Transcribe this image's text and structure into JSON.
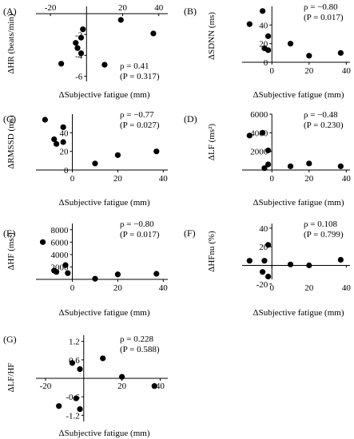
{
  "charts": [
    {
      "panel": "(A)",
      "type": "scatter",
      "xlabel": "ΔSubjective fatigue (mm)",
      "ylabel": "ΔHR (beats/min)",
      "xlim": [
        -28,
        45
      ],
      "ylim": [
        -6.5,
        0.7
      ],
      "x_ticks": [
        "-20",
        "20",
        "40"
      ],
      "x_tick_values": [
        -20,
        20,
        40
      ],
      "y_ticks": [
        "-2",
        "-4",
        "-6"
      ],
      "y_tick_values": [
        -2,
        -4,
        -6
      ],
      "x_tick_pos": "top",
      "stat_rho": "ρ = 0.41",
      "stat_p": "(P = 0.317)",
      "points": [
        {
          "x": -14,
          "y": -4.8
        },
        {
          "x": -6,
          "y": -2.8
        },
        {
          "x": -5,
          "y": -3.3
        },
        {
          "x": -3,
          "y": -3.8
        },
        {
          "x": -3,
          "y": -2.3
        },
        {
          "x": -2,
          "y": -1.5
        },
        {
          "x": 10,
          "y": -4.9
        },
        {
          "x": 19,
          "y": -0.6
        },
        {
          "x": 37,
          "y": -1.9
        }
      ]
    },
    {
      "panel": "(B)",
      "type": "scatter",
      "xlabel": "ΔSubjective fatigue (mm)",
      "ylabel": "ΔSDNN (ms)",
      "xlim": [
        -16,
        42
      ],
      "ylim": [
        0,
        60
      ],
      "x_ticks": [
        "0",
        "20",
        "40"
      ],
      "x_tick_values": [
        0,
        20,
        40
      ],
      "y_ticks": [
        "0",
        "20",
        "40"
      ],
      "y_tick_values": [
        0,
        20,
        40
      ],
      "x_tick_pos": "bottom",
      "stat_rho": "ρ = −0.80",
      "stat_p": "(P = 0.017)",
      "points": [
        {
          "x": -12,
          "y": 41
        },
        {
          "x": -5,
          "y": 55
        },
        {
          "x": -4,
          "y": 15
        },
        {
          "x": -2,
          "y": 13
        },
        {
          "x": -2,
          "y": 28
        },
        {
          "x": 10,
          "y": 20
        },
        {
          "x": 20,
          "y": 7
        },
        {
          "x": 37,
          "y": 10
        }
      ]
    },
    {
      "panel": "(C)",
      "type": "scatter",
      "xlabel": "ΔSubjective fatigue (mm)",
      "ylabel": "ΔRMSSD (ms)",
      "xlim": [
        -16,
        42
      ],
      "ylim": [
        0,
        60
      ],
      "x_ticks": [
        "0",
        "20",
        "40"
      ],
      "x_tick_values": [
        0,
        20,
        40
      ],
      "y_ticks": [
        "0",
        "20",
        "40"
      ],
      "y_tick_values": [
        0,
        20,
        40
      ],
      "x_tick_pos": "bottom",
      "stat_rho": "ρ = −0.77",
      "stat_p": "(P = 0.027)",
      "points": [
        {
          "x": -12,
          "y": 54
        },
        {
          "x": -8,
          "y": 33
        },
        {
          "x": -7,
          "y": 28
        },
        {
          "x": -4,
          "y": 46
        },
        {
          "x": -4,
          "y": 30
        },
        {
          "x": 10,
          "y": 7
        },
        {
          "x": 20,
          "y": 16
        },
        {
          "x": 37,
          "y": 20
        }
      ]
    },
    {
      "panel": "(D)",
      "type": "scatter",
      "xlabel": "ΔSubjective fatigue (mm)",
      "ylabel": "ΔLF (ms²)",
      "xlim": [
        -16,
        42
      ],
      "ylim": [
        0,
        6000
      ],
      "x_ticks": [
        "0",
        "20",
        "40"
      ],
      "x_tick_values": [
        0,
        20,
        40
      ],
      "y_ticks": [
        "6000",
        "4000",
        "2000"
      ],
      "y_tick_values": [
        6000,
        4000,
        2000
      ],
      "x_tick_pos": "bottom",
      "stat_rho": "ρ = −0.48",
      "stat_p": "(P = 0.230)",
      "points": [
        {
          "x": -12,
          "y": 3700
        },
        {
          "x": -5,
          "y": 4000
        },
        {
          "x": -4,
          "y": 200
        },
        {
          "x": -2,
          "y": 600
        },
        {
          "x": -2,
          "y": 2100
        },
        {
          "x": 10,
          "y": 400
        },
        {
          "x": 20,
          "y": 700
        },
        {
          "x": 37,
          "y": 400
        }
      ]
    },
    {
      "panel": "(E)",
      "type": "scatter",
      "xlabel": "ΔSubjective fatigue (mm)",
      "ylabel": "ΔHF (ms²)",
      "xlim": [
        -16,
        42
      ],
      "ylim": [
        0,
        9000
      ],
      "x_ticks": [
        "0",
        "20",
        "40"
      ],
      "x_tick_values": [
        0,
        20,
        40
      ],
      "y_ticks": [
        "8000",
        "6000",
        "4000",
        "2000"
      ],
      "y_tick_values": [
        8000,
        6000,
        4000,
        2000
      ],
      "x_tick_pos": "bottom",
      "stat_rho": "ρ = −0.80",
      "stat_p": "(P = 0.017)",
      "points": [
        {
          "x": -13,
          "y": 6000
        },
        {
          "x": -8,
          "y": 1400
        },
        {
          "x": -7,
          "y": 1200
        },
        {
          "x": -3,
          "y": 2300
        },
        {
          "x": -2,
          "y": 1000
        },
        {
          "x": 10,
          "y": 100
        },
        {
          "x": 20,
          "y": 800
        },
        {
          "x": 37,
          "y": 900
        }
      ]
    },
    {
      "panel": "(F)",
      "type": "scatter",
      "xlabel": "ΔSubjective fatigue (mm)",
      "ylabel": "ΔHFnu (%)",
      "xlim": [
        -16,
        42
      ],
      "ylim": [
        -15,
        45
      ],
      "x_ticks": [
        "0",
        "20",
        "40"
      ],
      "x_tick_values": [
        0,
        20,
        40
      ],
      "y_ticks": [
        "40",
        "20",
        "-20"
      ],
      "y_tick_values": [
        40,
        20,
        -20
      ],
      "x_tick_pos": "bottom",
      "stat_rho": "ρ = 0.108",
      "stat_p": "(P = 0.799)",
      "points": [
        {
          "x": -12,
          "y": 5
        },
        {
          "x": -5,
          "y": -7
        },
        {
          "x": -4,
          "y": 5
        },
        {
          "x": -2,
          "y": 22
        },
        {
          "x": -2,
          "y": -12
        },
        {
          "x": 10,
          "y": 1
        },
        {
          "x": 20,
          "y": 0
        },
        {
          "x": 37,
          "y": 6
        }
      ]
    },
    {
      "panel": "(G)",
      "type": "scatter",
      "xlabel": "ΔSubjective fatigue (mm)",
      "ylabel": "ΔLF/HF",
      "xlim": [
        -25,
        44
      ],
      "ylim": [
        -1.4,
        1.4
      ],
      "x_ticks": [
        "-20",
        "20",
        "40"
      ],
      "x_tick_values": [
        -20,
        20,
        40
      ],
      "y_ticks": [
        "1.2",
        "0.6",
        "-0.6",
        "-1.2"
      ],
      "y_tick_values": [
        1.2,
        0.6,
        -0.6,
        -1.2
      ],
      "x_tick_pos": "below-axis",
      "stat_rho": "ρ = 0.228",
      "stat_p": "(P = 0.588)",
      "points": [
        {
          "x": -13,
          "y": -0.9
        },
        {
          "x": -6,
          "y": 0.5
        },
        {
          "x": -4,
          "y": -0.65
        },
        {
          "x": -2,
          "y": 0.3
        },
        {
          "x": -2,
          "y": -1.0
        },
        {
          "x": 10,
          "y": 0.65
        },
        {
          "x": 20,
          "y": 0.05
        },
        {
          "x": 37,
          "y": -0.25
        }
      ]
    }
  ]
}
